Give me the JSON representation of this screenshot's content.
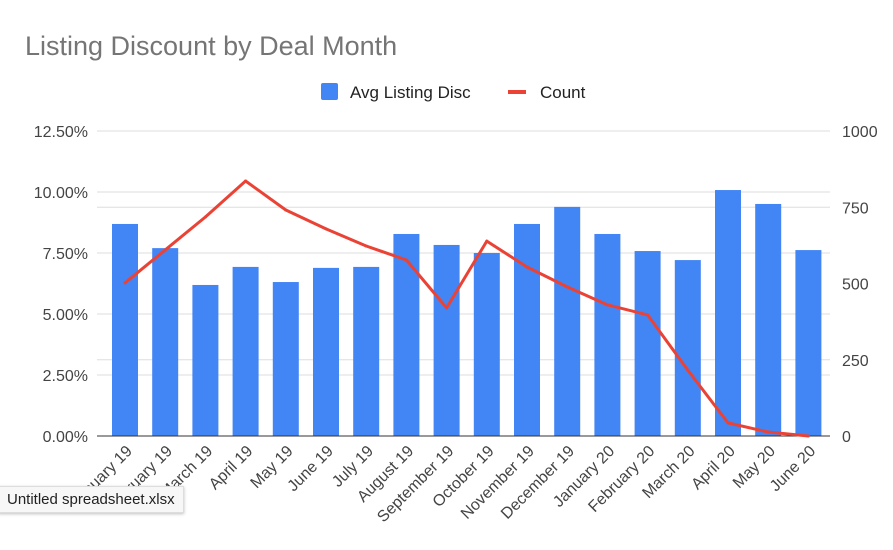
{
  "chart_data": {
    "type": "bar+line",
    "title": "Listing Discount by Deal Month",
    "categories": [
      "January 19",
      "February 19",
      "March 19",
      "April 19",
      "May 19",
      "June 19",
      "July 19",
      "August 19",
      "September 19",
      "October 19",
      "November 19",
      "December 19",
      "January 20",
      "February 20",
      "March 20",
      "April 20",
      "May 20",
      "June 20"
    ],
    "series": [
      {
        "name": "Avg Listing Disc",
        "type": "bar",
        "axis": "left",
        "color": "#4285f4",
        "values": [
          8.69,
          7.7,
          6.19,
          6.93,
          6.31,
          6.89,
          6.93,
          8.28,
          7.83,
          7.5,
          8.69,
          9.39,
          8.28,
          7.58,
          7.21,
          10.08,
          9.51,
          7.62
        ]
      },
      {
        "name": "Count",
        "type": "line",
        "axis": "right",
        "color": "#ea4335",
        "values": [
          502,
          610,
          718,
          836,
          741,
          679,
          623,
          577,
          420,
          639,
          554,
          489,
          430,
          397,
          216,
          43,
          13,
          0
        ]
      }
    ],
    "left_axis": {
      "ylim": [
        0,
        12.5
      ],
      "ticks": [
        "0.00%",
        "2.50%",
        "5.00%",
        "7.50%",
        "10.00%",
        "12.50%"
      ]
    },
    "right_axis": {
      "ylim": [
        0,
        1000
      ],
      "ticks": [
        "0",
        "250",
        "500",
        "750",
        "1000"
      ]
    },
    "legend": "top-center",
    "grid": true
  },
  "tooltip": "Untitled spreadsheet.xlsx"
}
